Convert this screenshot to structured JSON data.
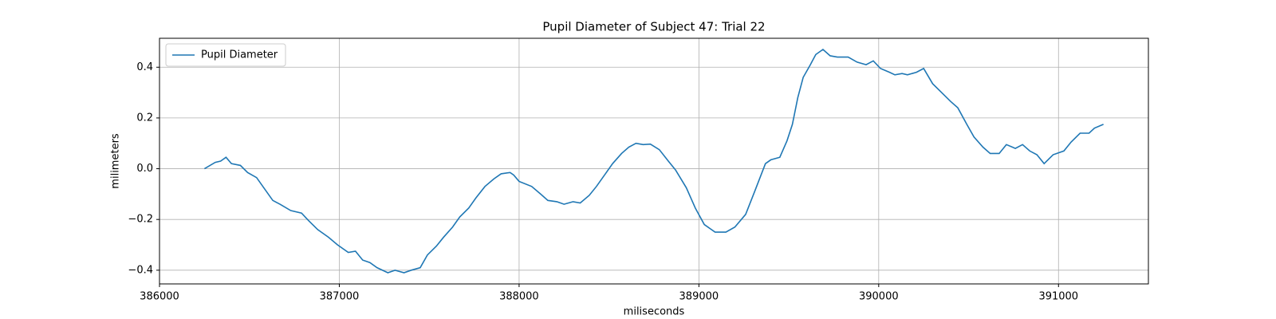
{
  "chart_data": {
    "type": "line",
    "title": "Pupil Diameter of Subject 47: Trial 22",
    "x_label": "miliseconds",
    "y_label": "milimeters",
    "x": [
      386250,
      386310,
      386340,
      386370,
      386400,
      386450,
      386490,
      386540,
      386580,
      386630,
      386670,
      386730,
      386790,
      386830,
      386880,
      386940,
      386990,
      387050,
      387090,
      387130,
      387170,
      387210,
      387270,
      387310,
      387360,
      387400,
      387450,
      387490,
      387540,
      387580,
      387630,
      387670,
      387720,
      387760,
      387810,
      387860,
      387900,
      387950,
      387970,
      388000,
      388070,
      388120,
      388160,
      388210,
      388250,
      388300,
      388340,
      388390,
      388430,
      388480,
      388520,
      388570,
      388610,
      388650,
      388690,
      388730,
      388780,
      388830,
      388870,
      388930,
      388980,
      389030,
      389090,
      389150,
      389200,
      389260,
      389310,
      389370,
      389400,
      389450,
      389490,
      389520,
      389550,
      389580,
      389620,
      389650,
      389690,
      389730,
      389770,
      389830,
      389880,
      389930,
      389970,
      390010,
      390060,
      390090,
      390130,
      390160,
      390210,
      390250,
      390300,
      390350,
      390400,
      390440,
      390490,
      390530,
      390580,
      390620,
      390670,
      390710,
      390760,
      390800,
      390840,
      390880,
      390920,
      390970,
      391030,
      391070,
      391120,
      391170,
      391200,
      391250
    ],
    "series": [
      {
        "name": "Pupil Diameter",
        "color": "#1f77b4",
        "values": [
          0.0,
          0.025,
          0.03,
          0.045,
          0.02,
          0.013,
          -0.015,
          -0.035,
          -0.075,
          -0.125,
          -0.14,
          -0.165,
          -0.175,
          -0.205,
          -0.24,
          -0.27,
          -0.3,
          -0.33,
          -0.325,
          -0.36,
          -0.37,
          -0.39,
          -0.41,
          -0.4,
          -0.41,
          -0.4,
          -0.39,
          -0.34,
          -0.305,
          -0.27,
          -0.23,
          -0.19,
          -0.155,
          -0.115,
          -0.07,
          -0.04,
          -0.02,
          -0.015,
          -0.025,
          -0.05,
          -0.07,
          -0.1,
          -0.125,
          -0.13,
          -0.14,
          -0.13,
          -0.135,
          -0.105,
          -0.07,
          -0.02,
          0.02,
          0.06,
          0.085,
          0.1,
          0.095,
          0.097,
          0.075,
          0.03,
          -0.005,
          -0.075,
          -0.155,
          -0.22,
          -0.25,
          -0.25,
          -0.23,
          -0.18,
          -0.09,
          0.02,
          0.035,
          0.045,
          0.11,
          0.175,
          0.28,
          0.36,
          0.41,
          0.45,
          0.47,
          0.445,
          0.44,
          0.44,
          0.42,
          0.41,
          0.425,
          0.395,
          0.38,
          0.37,
          0.375,
          0.37,
          0.38,
          0.395,
          0.335,
          0.3,
          0.265,
          0.24,
          0.175,
          0.125,
          0.085,
          0.06,
          0.06,
          0.095,
          0.08,
          0.095,
          0.07,
          0.055,
          0.02,
          0.055,
          0.07,
          0.105,
          0.14,
          0.14,
          0.16,
          0.175
        ]
      }
    ],
    "xlim": [
      386000,
      391500
    ],
    "xticks": [
      386000,
      387000,
      388000,
      389000,
      390000,
      391000
    ],
    "ylim": [
      -0.454,
      0.514
    ],
    "yticks": [
      {
        "value": -0.4,
        "label": "−0.4"
      },
      {
        "value": -0.2,
        "label": "−0.2"
      },
      {
        "value": 0,
        "label": "0.0"
      },
      0.2,
      0.4
    ],
    "grid": true,
    "legend": "upper left"
  }
}
